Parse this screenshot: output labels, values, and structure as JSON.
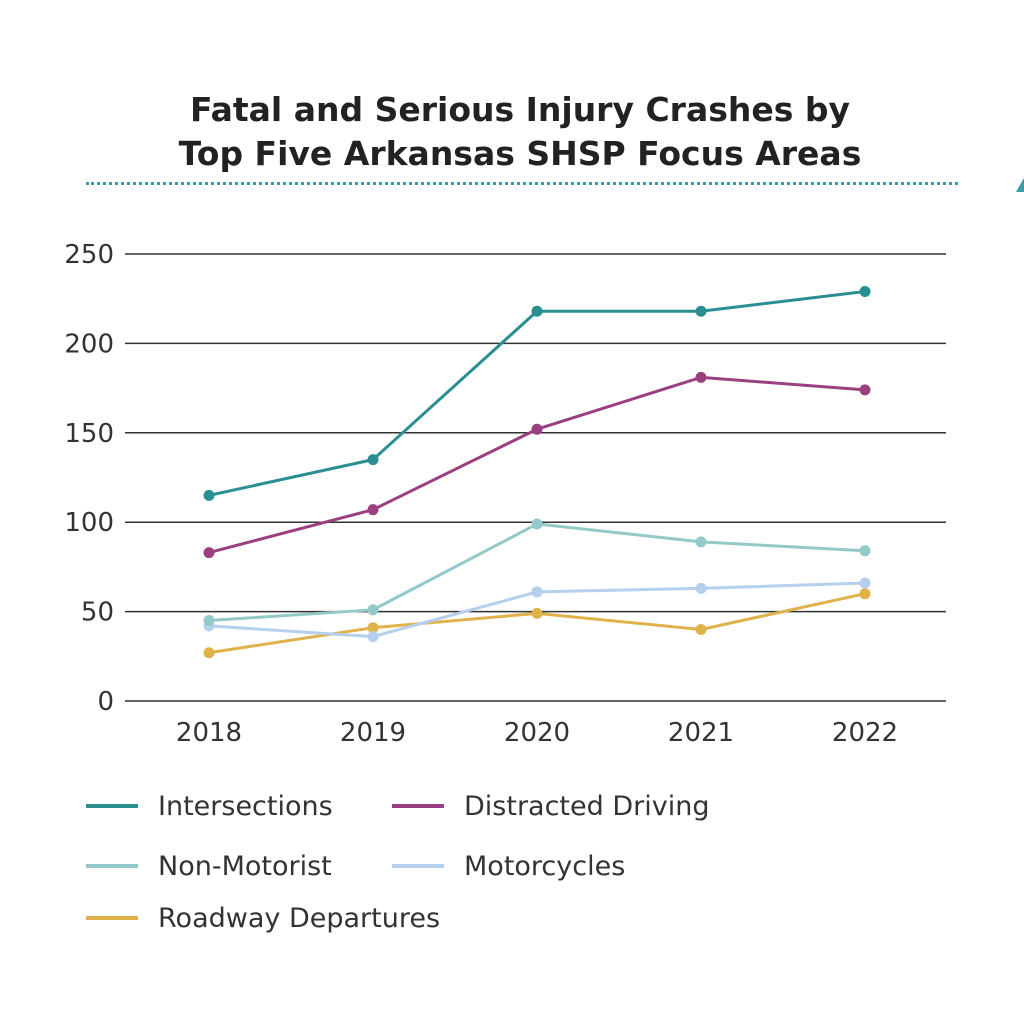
{
  "chart_data": {
    "type": "line",
    "title_lines": [
      "Fatal and Serious Injury Crashes by",
      "Top Five Arkansas SHSP Focus Areas"
    ],
    "xlabel": "",
    "ylabel": "",
    "categories": [
      "2018",
      "2019",
      "2020",
      "2021",
      "2022"
    ],
    "ylim": [
      0,
      250
    ],
    "yticks": [
      0,
      50,
      100,
      150,
      200,
      250
    ],
    "grid": "horizontal",
    "legend_position": "bottom",
    "series": [
      {
        "name": "Intersections",
        "color": "#2b8f91",
        "values": [
          115,
          135,
          218,
          218,
          229
        ]
      },
      {
        "name": "Distracted Driving",
        "color": "#9a3f80",
        "values": [
          83,
          107,
          152,
          181,
          174
        ]
      },
      {
        "name": "Non-Motorist",
        "color": "#93c9c8",
        "values": [
          45,
          51,
          99,
          89,
          84
        ]
      },
      {
        "name": "Motorcycles",
        "color": "#b5cfee",
        "values": [
          42,
          36,
          61,
          63,
          66
        ]
      },
      {
        "name": "Roadway Departures",
        "color": "#e0b24c",
        "values": [
          27,
          41,
          49,
          40,
          60
        ]
      }
    ]
  },
  "colors": {
    "title_rule": "#3a9da6",
    "grid": "#333333",
    "text": "#333333"
  }
}
